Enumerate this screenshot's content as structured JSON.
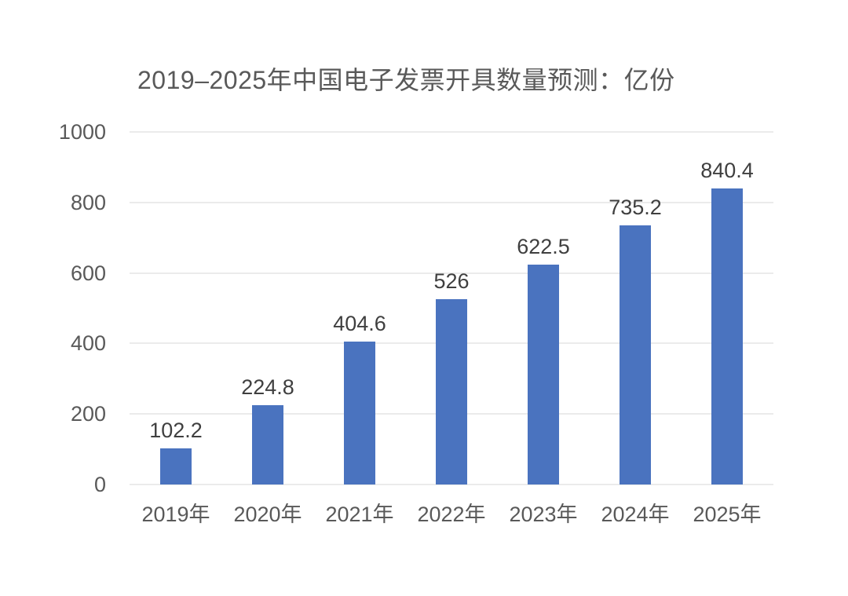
{
  "chart_data": {
    "type": "bar",
    "title": "2019–2025年中国电子发票开具数量预测：亿份",
    "categories": [
      "2019年",
      "2020年",
      "2021年",
      "2022年",
      "2023年",
      "2024年",
      "2025年"
    ],
    "values": [
      102.2,
      224.8,
      404.6,
      526,
      622.5,
      735.2,
      840.4
    ],
    "value_labels": [
      "102.2",
      "224.8",
      "404.6",
      "526",
      "622.5",
      "735.2",
      "840.4"
    ],
    "xlabel": "",
    "ylabel": "",
    "y_ticks": [
      0,
      200,
      400,
      600,
      800,
      1000
    ],
    "ylim": [
      0,
      1000
    ],
    "grid": true,
    "legend_position": "none",
    "colors": {
      "bar": "#4a73bf",
      "gridline": "#ebebeb",
      "axis_text": "#595959",
      "value_text": "#3f3f3f",
      "title_text": "#595959",
      "background": "#ffffff"
    }
  }
}
